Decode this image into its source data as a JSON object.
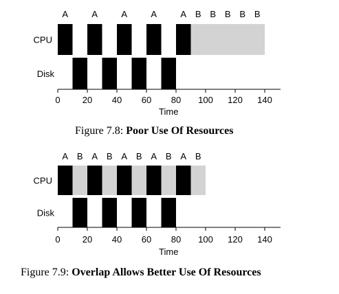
{
  "figures": [
    {
      "caption_prefix": "Figure 7.8: ",
      "caption_bold": "Poor Use Of Resources",
      "row_labels": {
        "cpu": "CPU",
        "disk": "Disk"
      },
      "x_axis": {
        "label": "Time",
        "min": 0,
        "max": 140,
        "ticks": [
          0,
          20,
          40,
          60,
          80,
          100,
          120,
          140
        ]
      },
      "cpu_blocks": [
        {
          "start": 0,
          "end": 10,
          "job": "A",
          "fill": "black"
        },
        {
          "start": 20,
          "end": 30,
          "job": "A",
          "fill": "black"
        },
        {
          "start": 40,
          "end": 50,
          "job": "A",
          "fill": "black"
        },
        {
          "start": 60,
          "end": 70,
          "job": "A",
          "fill": "black"
        },
        {
          "start": 80,
          "end": 90,
          "job": "A",
          "fill": "black"
        },
        {
          "start": 90,
          "end": 140,
          "job": "",
          "fill": "gray"
        }
      ],
      "job_labels": [
        {
          "x": 5,
          "text": "A"
        },
        {
          "x": 25,
          "text": "A"
        },
        {
          "x": 45,
          "text": "A"
        },
        {
          "x": 65,
          "text": "A"
        },
        {
          "x": 85,
          "text": "A"
        },
        {
          "x": 95,
          "text": "B"
        },
        {
          "x": 105,
          "text": "B"
        },
        {
          "x": 115,
          "text": "B"
        },
        {
          "x": 125,
          "text": "B"
        },
        {
          "x": 135,
          "text": "B"
        }
      ],
      "disk_blocks": [
        {
          "start": 10,
          "end": 20
        },
        {
          "start": 30,
          "end": 40
        },
        {
          "start": 50,
          "end": 60
        },
        {
          "start": 70,
          "end": 80
        }
      ]
    },
    {
      "caption_prefix": "Figure 7.9: ",
      "caption_bold": "Overlap Allows Better Use Of Resources",
      "row_labels": {
        "cpu": "CPU",
        "disk": "Disk"
      },
      "x_axis": {
        "label": "Time",
        "min": 0,
        "max": 140,
        "ticks": [
          0,
          20,
          40,
          60,
          80,
          100,
          120,
          140
        ]
      },
      "cpu_blocks": [
        {
          "start": 0,
          "end": 10,
          "job": "A",
          "fill": "black"
        },
        {
          "start": 10,
          "end": 20,
          "job": "B",
          "fill": "gray"
        },
        {
          "start": 20,
          "end": 30,
          "job": "A",
          "fill": "black"
        },
        {
          "start": 30,
          "end": 40,
          "job": "B",
          "fill": "gray"
        },
        {
          "start": 40,
          "end": 50,
          "job": "A",
          "fill": "black"
        },
        {
          "start": 50,
          "end": 60,
          "job": "B",
          "fill": "gray"
        },
        {
          "start": 60,
          "end": 70,
          "job": "A",
          "fill": "black"
        },
        {
          "start": 70,
          "end": 80,
          "job": "B",
          "fill": "gray"
        },
        {
          "start": 80,
          "end": 90,
          "job": "A",
          "fill": "black"
        },
        {
          "start": 90,
          "end": 100,
          "job": "B",
          "fill": "gray"
        }
      ],
      "job_labels": [
        {
          "x": 5,
          "text": "A"
        },
        {
          "x": 15,
          "text": "B"
        },
        {
          "x": 25,
          "text": "A"
        },
        {
          "x": 35,
          "text": "B"
        },
        {
          "x": 45,
          "text": "A"
        },
        {
          "x": 55,
          "text": "B"
        },
        {
          "x": 65,
          "text": "A"
        },
        {
          "x": 75,
          "text": "B"
        },
        {
          "x": 85,
          "text": "A"
        },
        {
          "x": 95,
          "text": "B"
        }
      ],
      "disk_blocks": [
        {
          "start": 10,
          "end": 20
        },
        {
          "start": 30,
          "end": 40
        },
        {
          "start": 50,
          "end": 60
        },
        {
          "start": 70,
          "end": 80
        }
      ]
    }
  ],
  "colors": {
    "busy": "#000000",
    "other": "#d3d3d3",
    "axis": "#000000"
  }
}
